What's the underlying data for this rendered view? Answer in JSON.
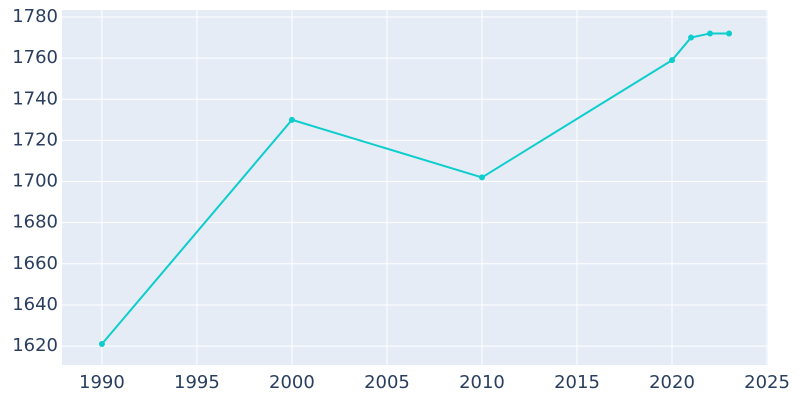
{
  "chart_data": {
    "type": "line",
    "x": [
      1990,
      2000,
      2010,
      2020,
      2021,
      2022,
      2023
    ],
    "series": [
      {
        "color": "#0dcdcd",
        "values": [
          1621,
          1730,
          1702,
          1759,
          1770,
          1772,
          1772
        ]
      }
    ],
    "xlim": [
      1987.9,
      2025.05
    ],
    "xticks": [
      1990,
      1995,
      2000,
      2005,
      2010,
      2015,
      2020,
      2025
    ],
    "ylim": [
      1610.8,
      1783.4
    ],
    "yticks": [
      1620,
      1640,
      1660,
      1680,
      1700,
      1720,
      1740,
      1760,
      1780
    ],
    "grid": true
  }
}
